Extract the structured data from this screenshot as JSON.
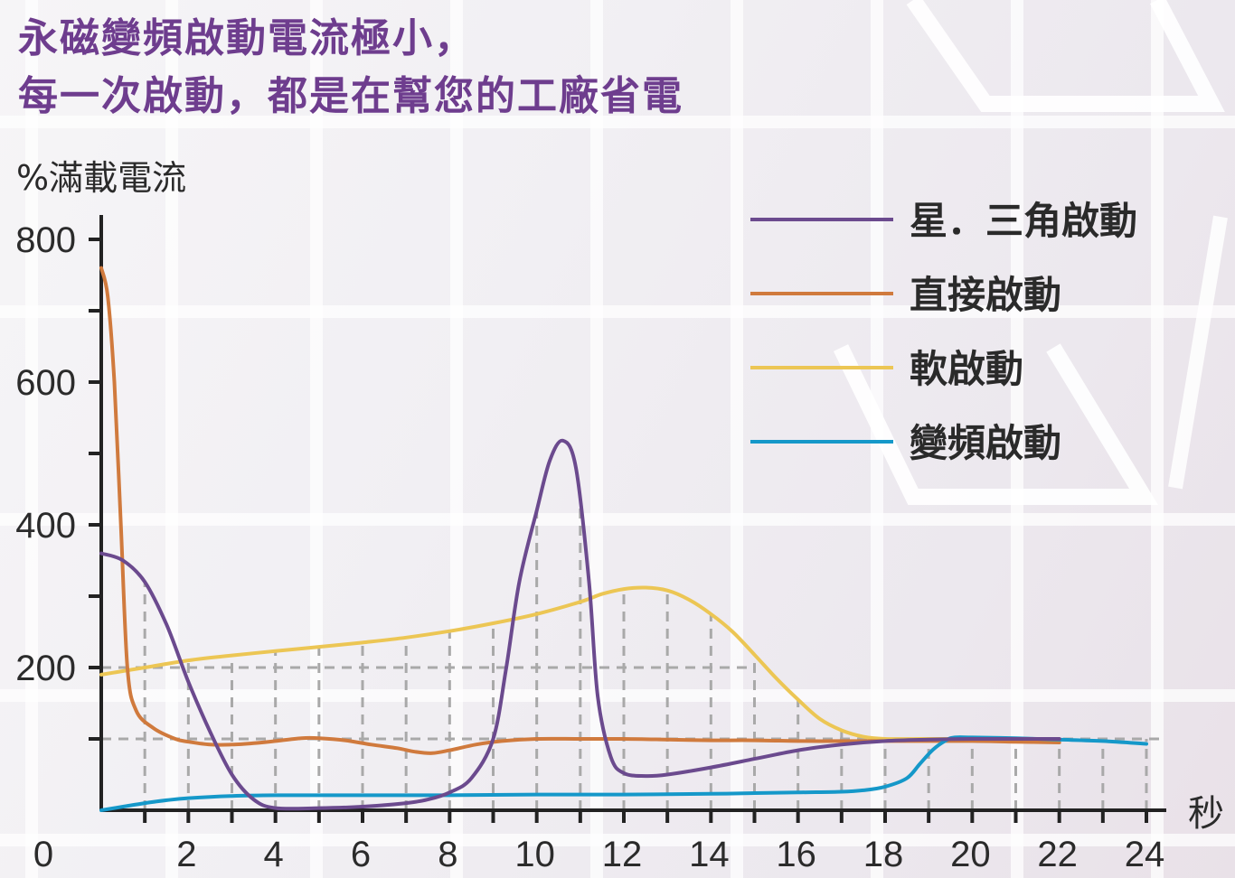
{
  "header": {
    "title_line_1": "永磁變頻啟動電流極小，",
    "title_line_2": "每一次啟動，都是在幫您的工廠省電"
  },
  "colors": {
    "title": "#6e3d8e",
    "star_delta": "#6b4a8e",
    "direct": "#d07a3d",
    "soft": "#ecc654",
    "vfd": "#1598c9"
  },
  "chart_data": {
    "type": "line",
    "ylabel": "%滿載電流",
    "xlabel": "秒",
    "xlim": [
      0,
      24
    ],
    "ylim": [
      0,
      800
    ],
    "x_ticks": [
      2,
      4,
      6,
      8,
      10,
      12,
      14,
      16,
      18,
      20,
      22,
      24
    ],
    "x_tick_labels": [
      "2",
      "4",
      "6",
      "8",
      "10",
      "12",
      "14",
      "16",
      "18",
      "20",
      "22",
      "24"
    ],
    "y_ticks": [
      200,
      400,
      600,
      800
    ],
    "y_tick_labels": [
      "200",
      "400",
      "600",
      "800"
    ],
    "origin_label": "0",
    "legend_position": "top-right",
    "series": [
      {
        "name": "星．三角啟動",
        "color": "#6b4a8e",
        "points": [
          [
            0,
            360
          ],
          [
            0.5,
            350
          ],
          [
            1,
            320
          ],
          [
            1.5,
            260
          ],
          [
            2,
            180
          ],
          [
            2.5,
            110
          ],
          [
            3,
            50
          ],
          [
            3.5,
            15
          ],
          [
            4,
            3
          ],
          [
            5,
            3
          ],
          [
            6,
            5
          ],
          [
            7,
            10
          ],
          [
            7.5,
            15
          ],
          [
            8,
            25
          ],
          [
            8.5,
            45
          ],
          [
            9,
            100
          ],
          [
            9.3,
            200
          ],
          [
            9.6,
            320
          ],
          [
            10,
            420
          ],
          [
            10.3,
            490
          ],
          [
            10.6,
            518
          ],
          [
            10.9,
            480
          ],
          [
            11.2,
            320
          ],
          [
            11.4,
            160
          ],
          [
            11.7,
            75
          ],
          [
            12,
            52
          ],
          [
            12.5,
            48
          ],
          [
            13,
            50
          ],
          [
            14,
            60
          ],
          [
            15,
            72
          ],
          [
            16,
            84
          ],
          [
            17,
            92
          ],
          [
            18,
            97
          ],
          [
            19,
            99
          ],
          [
            20,
            100
          ],
          [
            21,
            100
          ],
          [
            22,
            100
          ]
        ]
      },
      {
        "name": "直接啟動",
        "color": "#d07a3d",
        "points": [
          [
            0,
            760
          ],
          [
            0.15,
            720
          ],
          [
            0.3,
            600
          ],
          [
            0.45,
            400
          ],
          [
            0.6,
            200
          ],
          [
            0.8,
            140
          ],
          [
            1.2,
            115
          ],
          [
            1.7,
            100
          ],
          [
            2,
            96
          ],
          [
            2.5,
            92
          ],
          [
            3,
            92
          ],
          [
            3.5,
            94
          ],
          [
            4,
            97
          ],
          [
            4.6,
            101
          ],
          [
            5,
            101
          ],
          [
            5.6,
            98
          ],
          [
            6.2,
            92
          ],
          [
            6.8,
            87
          ],
          [
            7.2,
            82
          ],
          [
            7.6,
            80
          ],
          [
            8,
            84
          ],
          [
            8.6,
            92
          ],
          [
            9.2,
            97
          ],
          [
            10,
            100
          ],
          [
            11,
            100
          ],
          [
            12,
            100
          ],
          [
            13,
            99
          ],
          [
            14,
            98
          ],
          [
            15,
            98
          ],
          [
            16,
            97
          ],
          [
            17,
            97
          ],
          [
            18,
            97
          ],
          [
            19,
            97
          ],
          [
            20,
            97
          ],
          [
            21,
            96
          ],
          [
            22,
            95
          ]
        ]
      },
      {
        "name": "軟啟動",
        "color": "#ecc654",
        "points": [
          [
            0,
            190
          ],
          [
            1,
            200
          ],
          [
            2,
            210
          ],
          [
            3,
            217
          ],
          [
            4,
            223
          ],
          [
            5,
            229
          ],
          [
            6,
            235
          ],
          [
            7,
            242
          ],
          [
            8,
            251
          ],
          [
            9,
            262
          ],
          [
            10,
            275
          ],
          [
            11,
            292
          ],
          [
            11.5,
            303
          ],
          [
            12,
            310
          ],
          [
            12.5,
            312
          ],
          [
            13,
            308
          ],
          [
            13.5,
            295
          ],
          [
            14,
            275
          ],
          [
            14.5,
            250
          ],
          [
            15,
            218
          ],
          [
            15.5,
            185
          ],
          [
            16,
            155
          ],
          [
            16.5,
            128
          ],
          [
            17,
            112
          ],
          [
            17.5,
            103
          ],
          [
            18,
            100
          ],
          [
            19,
            100
          ],
          [
            20,
            100
          ]
        ]
      },
      {
        "name": "變頻啟動",
        "color": "#1598c9",
        "points": [
          [
            0,
            0
          ],
          [
            0.5,
            5
          ],
          [
            1,
            10
          ],
          [
            1.5,
            14
          ],
          [
            2,
            17
          ],
          [
            3,
            20
          ],
          [
            4,
            21
          ],
          [
            5,
            21
          ],
          [
            6,
            21
          ],
          [
            7,
            21
          ],
          [
            8,
            21
          ],
          [
            10,
            22
          ],
          [
            12,
            22
          ],
          [
            14,
            23
          ],
          [
            15,
            24
          ],
          [
            16,
            25
          ],
          [
            17,
            26
          ],
          [
            17.5,
            28
          ],
          [
            18,
            33
          ],
          [
            18.5,
            45
          ],
          [
            18.8,
            65
          ],
          [
            19.1,
            85
          ],
          [
            19.4,
            98
          ],
          [
            19.6,
            102
          ],
          [
            20,
            102
          ],
          [
            21,
            101
          ],
          [
            22,
            99
          ],
          [
            23,
            97
          ],
          [
            24,
            93
          ]
        ]
      }
    ]
  }
}
